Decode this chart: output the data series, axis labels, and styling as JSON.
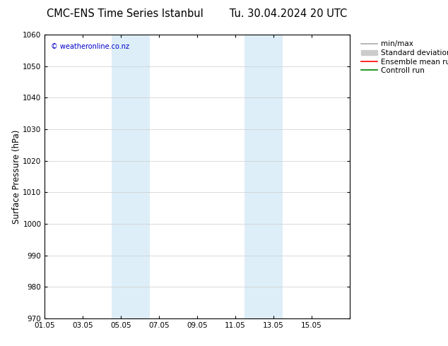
{
  "title": "CMC-ENS Time Series Istanbul",
  "title2": "Tu. 30.04.2024 20 UTC",
  "ylabel": "Surface Pressure (hPa)",
  "ylim": [
    970,
    1060
  ],
  "yticks": [
    970,
    980,
    990,
    1000,
    1010,
    1020,
    1030,
    1040,
    1050,
    1060
  ],
  "xlim_start": 0,
  "xlim_end": 16,
  "xtick_positions": [
    0,
    2,
    4,
    6,
    8,
    10,
    12,
    14,
    16
  ],
  "xtick_labels": [
    "01.05",
    "03.05",
    "05.05",
    "07.05",
    "09.05",
    "11.05",
    "13.05",
    "15.05",
    ""
  ],
  "shade_bands": [
    {
      "x_start": 3.5,
      "x_end": 5.5
    },
    {
      "x_start": 10.5,
      "x_end": 12.5
    }
  ],
  "shade_color": "#ddeef8",
  "background_color": "#ffffff",
  "watermark": "© weatheronline.co.nz",
  "watermark_color": "#0000cc",
  "legend_entries": [
    {
      "label": "min/max",
      "color": "#aaaaaa",
      "lw": 1.2
    },
    {
      "label": "Standard deviation",
      "color": "#cccccc",
      "lw": 7
    },
    {
      "label": "Ensemble mean run",
      "color": "#ff0000",
      "lw": 1.2
    },
    {
      "label": "Controll run",
      "color": "#008000",
      "lw": 1.2
    }
  ],
  "title_fontsize": 10.5,
  "axis_fontsize": 8.5,
  "tick_fontsize": 7.5,
  "legend_fontsize": 7.5
}
